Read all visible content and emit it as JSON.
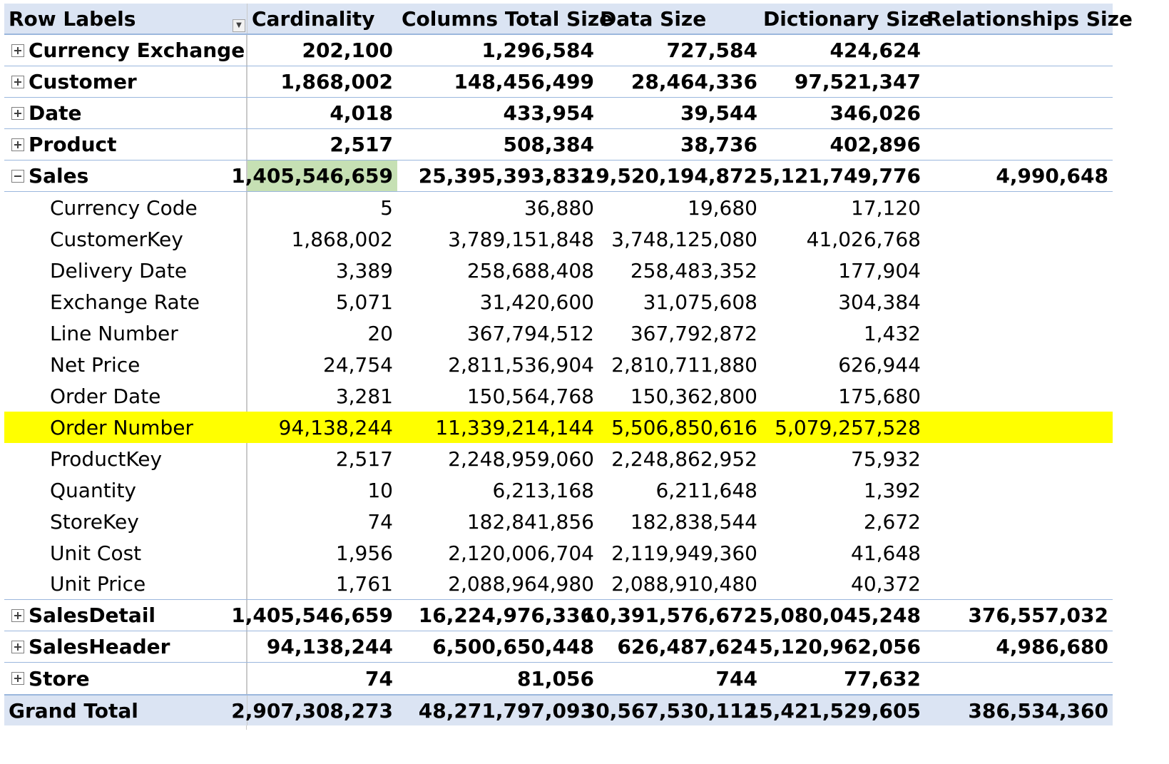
{
  "header": {
    "row_labels": "Row Labels",
    "cardinality": "Cardinality",
    "columns_total_size": "Columns Total Size",
    "data_size": "Data Size",
    "dictionary_size": "Dictionary Size",
    "relationships_size": "Relationships Size"
  },
  "rows": [
    {
      "label": "Currency Exchange",
      "cardinality": "202,100",
      "columns_total_size": "1,296,584",
      "data_size": "727,584",
      "dictionary_size": "424,624",
      "relationships_size": ""
    },
    {
      "label": "Customer",
      "cardinality": "1,868,002",
      "columns_total_size": "148,456,499",
      "data_size": "28,464,336",
      "dictionary_size": "97,521,347",
      "relationships_size": ""
    },
    {
      "label": "Date",
      "cardinality": "4,018",
      "columns_total_size": "433,954",
      "data_size": "39,544",
      "dictionary_size": "346,026",
      "relationships_size": ""
    },
    {
      "label": "Product",
      "cardinality": "2,517",
      "columns_total_size": "508,384",
      "data_size": "38,736",
      "dictionary_size": "402,896",
      "relationships_size": ""
    },
    {
      "label": "Sales",
      "cardinality": "1,405,546,659",
      "columns_total_size": "25,395,393,832",
      "data_size": "19,520,194,872",
      "dictionary_size": "5,121,749,776",
      "relationships_size": "4,990,648"
    },
    {
      "label": "Currency Code",
      "cardinality": "5",
      "columns_total_size": "36,880",
      "data_size": "19,680",
      "dictionary_size": "17,120",
      "relationships_size": ""
    },
    {
      "label": "CustomerKey",
      "cardinality": "1,868,002",
      "columns_total_size": "3,789,151,848",
      "data_size": "3,748,125,080",
      "dictionary_size": "41,026,768",
      "relationships_size": ""
    },
    {
      "label": "Delivery Date",
      "cardinality": "3,389",
      "columns_total_size": "258,688,408",
      "data_size": "258,483,352",
      "dictionary_size": "177,904",
      "relationships_size": ""
    },
    {
      "label": "Exchange Rate",
      "cardinality": "5,071",
      "columns_total_size": "31,420,600",
      "data_size": "31,075,608",
      "dictionary_size": "304,384",
      "relationships_size": ""
    },
    {
      "label": "Line Number",
      "cardinality": "20",
      "columns_total_size": "367,794,512",
      "data_size": "367,792,872",
      "dictionary_size": "1,432",
      "relationships_size": ""
    },
    {
      "label": "Net Price",
      "cardinality": "24,754",
      "columns_total_size": "2,811,536,904",
      "data_size": "2,810,711,880",
      "dictionary_size": "626,944",
      "relationships_size": ""
    },
    {
      "label": "Order Date",
      "cardinality": "3,281",
      "columns_total_size": "150,564,768",
      "data_size": "150,362,800",
      "dictionary_size": "175,680",
      "relationships_size": ""
    },
    {
      "label": "Order Number",
      "cardinality": "94,138,244",
      "columns_total_size": "11,339,214,144",
      "data_size": "5,506,850,616",
      "dictionary_size": "5,079,257,528",
      "relationships_size": ""
    },
    {
      "label": "ProductKey",
      "cardinality": "2,517",
      "columns_total_size": "2,248,959,060",
      "data_size": "2,248,862,952",
      "dictionary_size": "75,932",
      "relationships_size": ""
    },
    {
      "label": "Quantity",
      "cardinality": "10",
      "columns_total_size": "6,213,168",
      "data_size": "6,211,648",
      "dictionary_size": "1,392",
      "relationships_size": ""
    },
    {
      "label": "StoreKey",
      "cardinality": "74",
      "columns_total_size": "182,841,856",
      "data_size": "182,838,544",
      "dictionary_size": "2,672",
      "relationships_size": ""
    },
    {
      "label": "Unit Cost",
      "cardinality": "1,956",
      "columns_total_size": "2,120,006,704",
      "data_size": "2,119,949,360",
      "dictionary_size": "41,648",
      "relationships_size": ""
    },
    {
      "label": "Unit Price",
      "cardinality": "1,761",
      "columns_total_size": "2,088,964,980",
      "data_size": "2,088,910,480",
      "dictionary_size": "40,372",
      "relationships_size": ""
    },
    {
      "label": "SalesDetail",
      "cardinality": "1,405,546,659",
      "columns_total_size": "16,224,976,336",
      "data_size": "10,391,576,672",
      "dictionary_size": "5,080,045,248",
      "relationships_size": "376,557,032"
    },
    {
      "label": "SalesHeader",
      "cardinality": "94,138,244",
      "columns_total_size": "6,500,650,448",
      "data_size": "626,487,624",
      "dictionary_size": "5,120,962,056",
      "relationships_size": "4,986,680"
    },
    {
      "label": "Store",
      "cardinality": "74",
      "columns_total_size": "81,056",
      "data_size": "744",
      "dictionary_size": "77,632",
      "relationships_size": ""
    }
  ],
  "grand_total": {
    "label": "Grand Total",
    "cardinality": "2,907,308,273",
    "columns_total_size": "48,271,797,093",
    "data_size": "30,567,530,112",
    "dictionary_size": "15,421,529,605",
    "relationships_size": "386,534,360"
  },
  "colors": {
    "header_bg": "#dbe4f3",
    "highlight_row": "#ffff00",
    "highlight_cell": "#c6e0b4",
    "border": "#9bb7dd"
  },
  "icons": {
    "filter": "filter-dropdown-icon",
    "expand": "expand-plus-icon",
    "collapse": "collapse-minus-icon"
  }
}
